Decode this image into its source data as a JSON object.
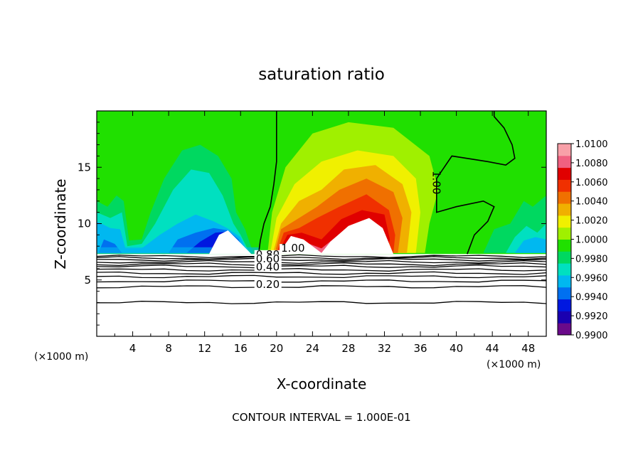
{
  "chart_data": {
    "type": "heatmap",
    "title": "saturation ratio",
    "xlabel": "X-coordinate",
    "ylabel": "Z-coordinate",
    "x_unit_left": "(×1000 m)",
    "x_unit_right": "(×1000 m)",
    "xlim": [
      0,
      50
    ],
    "ylim": [
      0,
      20
    ],
    "x_ticks": [
      4,
      8,
      12,
      16,
      20,
      24,
      28,
      32,
      36,
      40,
      44,
      48
    ],
    "y_ticks": [
      5,
      10,
      15
    ],
    "footer": "CONTOUR INTERVAL = 1.000E-01",
    "colorbar": {
      "min": 0.99,
      "max": 1.01,
      "labels": [
        "1.0100",
        "1.0080",
        "1.0060",
        "1.0040",
        "1.0020",
        "1.0000",
        "0.9980",
        "0.9960",
        "0.9940",
        "0.9920",
        "0.9900"
      ],
      "colors": [
        "#6a0a8a",
        "#1a00b0",
        "#0018e0",
        "#0070f0",
        "#00b8f0",
        "#00e0c0",
        "#00d860",
        "#20e000",
        "#a0f000",
        "#f0f000",
        "#f0b000",
        "#f07000",
        "#f03000",
        "#e00000",
        "#f06080",
        "#f8a0a8"
      ]
    },
    "ground_surface_z": 7.3,
    "contour_labels": [
      "1.00",
      "0.80",
      "0.60",
      "0.40",
      "0.20"
    ],
    "contour_lines_z": [
      7.1,
      6.95,
      6.8,
      6.6,
      6.4,
      6.2,
      5.9,
      5.6,
      5.3,
      4.9,
      4.4,
      3.0
    ],
    "saturation_one_contours": [
      {
        "name": "1.00",
        "x": [
          18.0,
          18.2,
          18.6,
          19.3,
          19.7,
          20.0,
          20.0,
          20.0
        ],
        "z": [
          7.3,
          8.5,
          10.0,
          11.5,
          13.5,
          15.5,
          17.5,
          20.0
        ]
      },
      {
        "name": "1.00",
        "x": [
          41.2,
          42.0,
          43.5,
          44.2,
          43.0,
          40.0,
          37.8,
          37.8,
          39.5,
          43.5,
          45.5,
          46.5,
          46.2,
          45.3,
          44.2,
          44.2
        ],
        "z": [
          7.3,
          9.0,
          10.2,
          11.5,
          12.0,
          11.5,
          11.0,
          14.0,
          16.0,
          15.5,
          15.2,
          15.8,
          17.0,
          18.5,
          19.5,
          20.0
        ]
      }
    ]
  }
}
